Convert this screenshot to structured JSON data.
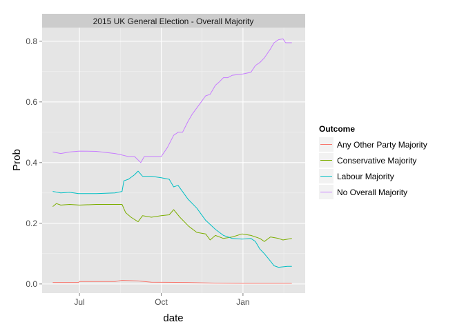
{
  "chart_data": {
    "type": "line",
    "title": "2015 UK General Election - Overall Majority",
    "xlabel": "date",
    "ylabel": "Prob",
    "x_ticks": [
      "Jul",
      "Oct",
      "Jan"
    ],
    "y_ticks": [
      "0.0",
      "0.2",
      "0.4",
      "0.6",
      "0.8"
    ],
    "ylim": [
      -0.03,
      0.845
    ],
    "xlim": [
      "2014-05-20",
      "2015-03-12"
    ],
    "grid": true,
    "legend": {
      "title": "Outcome",
      "placement": "right"
    },
    "series": [
      {
        "name": "Any Other Party Majority",
        "color": "#F8766D",
        "points": [
          [
            "2014-06-01",
            0.005
          ],
          [
            "2014-06-30",
            0.005
          ],
          [
            "2014-07-01",
            0.008
          ],
          [
            "2014-08-10",
            0.008
          ],
          [
            "2014-08-18",
            0.012
          ],
          [
            "2014-09-05",
            0.01
          ],
          [
            "2014-09-20",
            0.006
          ],
          [
            "2014-10-31",
            0.005
          ],
          [
            "2014-11-30",
            0.003
          ],
          [
            "2014-12-31",
            0.002
          ],
          [
            "2015-01-31",
            0.002
          ],
          [
            "2015-02-25",
            0.002
          ]
        ]
      },
      {
        "name": "Conservative Majority",
        "color": "#7CAE00",
        "points": [
          [
            "2014-06-01",
            0.255
          ],
          [
            "2014-06-05",
            0.265
          ],
          [
            "2014-06-10",
            0.26
          ],
          [
            "2014-06-20",
            0.262
          ],
          [
            "2014-07-01",
            0.26
          ],
          [
            "2014-07-20",
            0.262
          ],
          [
            "2014-08-10",
            0.262
          ],
          [
            "2014-08-18",
            0.262
          ],
          [
            "2014-08-22",
            0.235
          ],
          [
            "2014-08-28",
            0.22
          ],
          [
            "2014-09-05",
            0.205
          ],
          [
            "2014-09-10",
            0.225
          ],
          [
            "2014-09-20",
            0.22
          ],
          [
            "2014-10-01",
            0.225
          ],
          [
            "2014-10-10",
            0.228
          ],
          [
            "2014-10-15",
            0.245
          ],
          [
            "2014-10-22",
            0.22
          ],
          [
            "2014-11-01",
            0.19
          ],
          [
            "2014-11-10",
            0.17
          ],
          [
            "2014-11-20",
            0.165
          ],
          [
            "2014-11-25",
            0.145
          ],
          [
            "2014-12-01",
            0.16
          ],
          [
            "2014-12-10",
            0.15
          ],
          [
            "2014-12-20",
            0.155
          ],
          [
            "2014-12-31",
            0.165
          ],
          [
            "2015-01-10",
            0.16
          ],
          [
            "2015-01-20",
            0.15
          ],
          [
            "2015-01-25",
            0.14
          ],
          [
            "2015-02-01",
            0.155
          ],
          [
            "2015-02-10",
            0.15
          ],
          [
            "2015-02-15",
            0.145
          ],
          [
            "2015-02-25",
            0.15
          ]
        ]
      },
      {
        "name": "Labour Majority",
        "color": "#00BFC4",
        "points": [
          [
            "2014-06-01",
            0.305
          ],
          [
            "2014-06-10",
            0.3
          ],
          [
            "2014-06-20",
            0.302
          ],
          [
            "2014-06-30",
            0.298
          ],
          [
            "2014-07-20",
            0.298
          ],
          [
            "2014-08-10",
            0.3
          ],
          [
            "2014-08-18",
            0.305
          ],
          [
            "2014-08-20",
            0.34
          ],
          [
            "2014-08-25",
            0.345
          ],
          [
            "2014-09-01",
            0.36
          ],
          [
            "2014-09-05",
            0.372
          ],
          [
            "2014-09-10",
            0.355
          ],
          [
            "2014-09-20",
            0.355
          ],
          [
            "2014-10-01",
            0.35
          ],
          [
            "2014-10-10",
            0.345
          ],
          [
            "2014-10-15",
            0.32
          ],
          [
            "2014-10-20",
            0.325
          ],
          [
            "2014-10-31",
            0.28
          ],
          [
            "2014-11-10",
            0.25
          ],
          [
            "2014-11-20",
            0.21
          ],
          [
            "2014-12-01",
            0.18
          ],
          [
            "2014-12-10",
            0.16
          ],
          [
            "2014-12-20",
            0.15
          ],
          [
            "2014-12-31",
            0.148
          ],
          [
            "2015-01-10",
            0.15
          ],
          [
            "2015-01-15",
            0.14
          ],
          [
            "2015-01-20",
            0.115
          ],
          [
            "2015-01-25",
            0.1
          ],
          [
            "2015-02-01",
            0.075
          ],
          [
            "2015-02-05",
            0.06
          ],
          [
            "2015-02-10",
            0.055
          ],
          [
            "2015-02-20",
            0.058
          ],
          [
            "2015-02-25",
            0.058
          ]
        ]
      },
      {
        "name": "No Overall Majority",
        "color": "#C77CFF",
        "points": [
          [
            "2014-06-01",
            0.435
          ],
          [
            "2014-06-10",
            0.43
          ],
          [
            "2014-06-20",
            0.435
          ],
          [
            "2014-07-01",
            0.438
          ],
          [
            "2014-07-20",
            0.437
          ],
          [
            "2014-08-10",
            0.43
          ],
          [
            "2014-08-18",
            0.425
          ],
          [
            "2014-08-25",
            0.42
          ],
          [
            "2014-09-01",
            0.42
          ],
          [
            "2014-09-08",
            0.4
          ],
          [
            "2014-09-12",
            0.42
          ],
          [
            "2014-09-20",
            0.42
          ],
          [
            "2014-10-01",
            0.42
          ],
          [
            "2014-10-08",
            0.45
          ],
          [
            "2014-10-15",
            0.49
          ],
          [
            "2014-10-20",
            0.5
          ],
          [
            "2014-10-25",
            0.5
          ],
          [
            "2014-10-31",
            0.535
          ],
          [
            "2014-11-05",
            0.56
          ],
          [
            "2014-11-10",
            0.58
          ],
          [
            "2014-11-15",
            0.6
          ],
          [
            "2014-11-20",
            0.62
          ],
          [
            "2014-11-25",
            0.625
          ],
          [
            "2014-12-01",
            0.655
          ],
          [
            "2014-12-05",
            0.665
          ],
          [
            "2014-12-10",
            0.68
          ],
          [
            "2014-12-15",
            0.68
          ],
          [
            "2014-12-20",
            0.688
          ],
          [
            "2015-01-01",
            0.692
          ],
          [
            "2015-01-10",
            0.698
          ],
          [
            "2015-01-15",
            0.72
          ],
          [
            "2015-01-20",
            0.73
          ],
          [
            "2015-01-25",
            0.745
          ],
          [
            "2015-02-01",
            0.775
          ],
          [
            "2015-02-05",
            0.795
          ],
          [
            "2015-02-10",
            0.805
          ],
          [
            "2015-02-15",
            0.808
          ],
          [
            "2015-02-18",
            0.795
          ],
          [
            "2015-02-25",
            0.795
          ]
        ]
      }
    ]
  }
}
